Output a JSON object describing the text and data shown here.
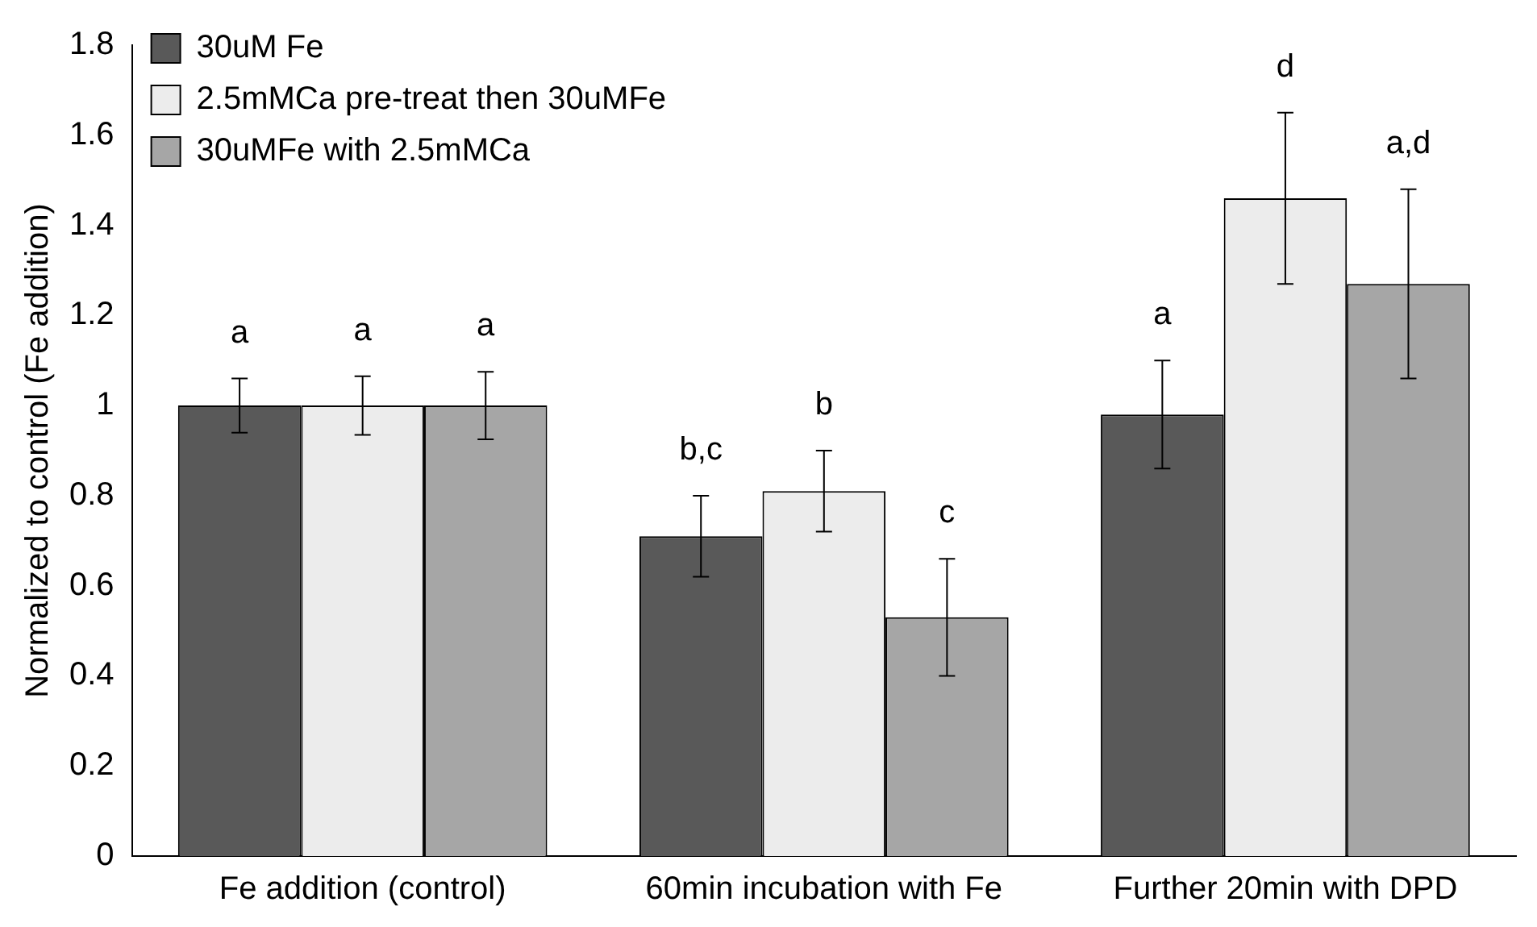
{
  "chart_data": {
    "type": "bar",
    "ylabel": "Normalized to control (Fe addition)",
    "categories": [
      "Fe addition (control)",
      "60min incubation with Fe",
      "Further 20min with DPD"
    ],
    "series": [
      {
        "name": "30uM Fe",
        "color": "#595959",
        "values": [
          1.0,
          0.71,
          0.98
        ],
        "errors": [
          0.06,
          0.09,
          0.12
        ]
      },
      {
        "name": "2.5mMCa pre-treat then 30uMFe",
        "color": "#ececec",
        "values": [
          1.0,
          0.81,
          1.46
        ],
        "errors": [
          0.065,
          0.09,
          0.19
        ]
      },
      {
        "name": "30uMFe with 2.5mMCa",
        "color": "#a6a6a6",
        "values": [
          1.0,
          0.53,
          1.27
        ],
        "errors": [
          0.075,
          0.13,
          0.21
        ]
      }
    ],
    "ylim": [
      0,
      1.8
    ],
    "yticks": [
      0,
      0.2,
      0.4,
      0.6,
      0.8,
      1,
      1.2,
      1.4,
      1.6,
      1.8
    ],
    "grid": false,
    "legend": "top",
    "annotations": [
      "a",
      "a",
      "a",
      "b,c",
      "b",
      "c",
      "a",
      "d",
      "a,d"
    ]
  }
}
